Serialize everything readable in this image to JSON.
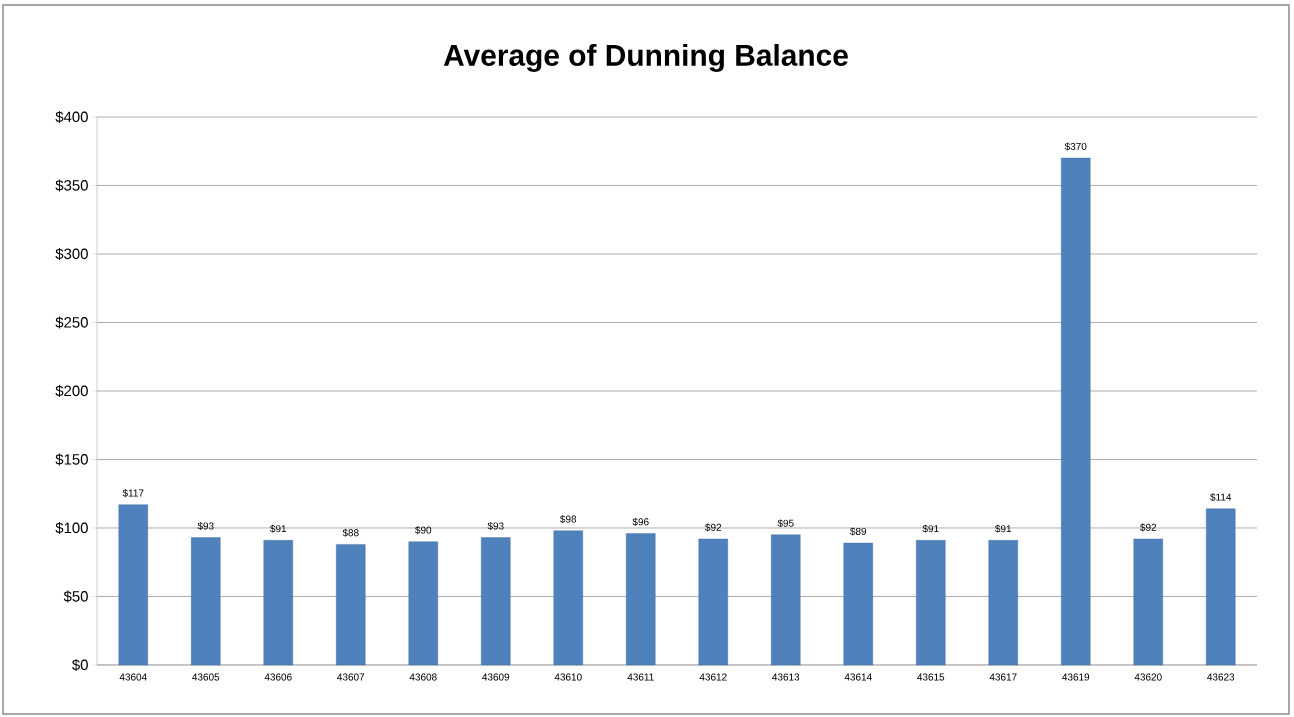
{
  "chart_data": {
    "type": "bar",
    "title": "Average of  Dunning Balance",
    "categories": [
      "43604",
      "43605",
      "43606",
      "43607",
      "43608",
      "43609",
      "43610",
      "43611",
      "43612",
      "43613",
      "43614",
      "43615",
      "43617",
      "43619",
      "43620",
      "43623"
    ],
    "values": [
      117,
      93,
      91,
      88,
      90,
      93,
      98,
      96,
      92,
      95,
      89,
      91,
      91,
      370,
      92,
      114
    ],
    "value_labels": [
      "$117",
      "$93",
      "$91",
      "$88",
      "$90",
      "$93",
      "$98",
      "$96",
      "$92",
      "$95",
      "$89",
      "$91",
      "$91",
      "$370",
      "$92",
      "$114"
    ],
    "color": "#4f81bd",
    "ylim": [
      0,
      400
    ],
    "yticks": [
      {
        "value": 0,
        "label": "$0"
      },
      {
        "value": 50,
        "label": "$50"
      },
      {
        "value": 100,
        "label": "$100"
      },
      {
        "value": 150,
        "label": "$150"
      },
      {
        "value": 200,
        "label": "$200"
      },
      {
        "value": 250,
        "label": "$250"
      },
      {
        "value": 300,
        "label": "$300"
      },
      {
        "value": 350,
        "label": "$350"
      },
      {
        "value": 400,
        "label": "$400"
      }
    ],
    "grid": "y"
  }
}
